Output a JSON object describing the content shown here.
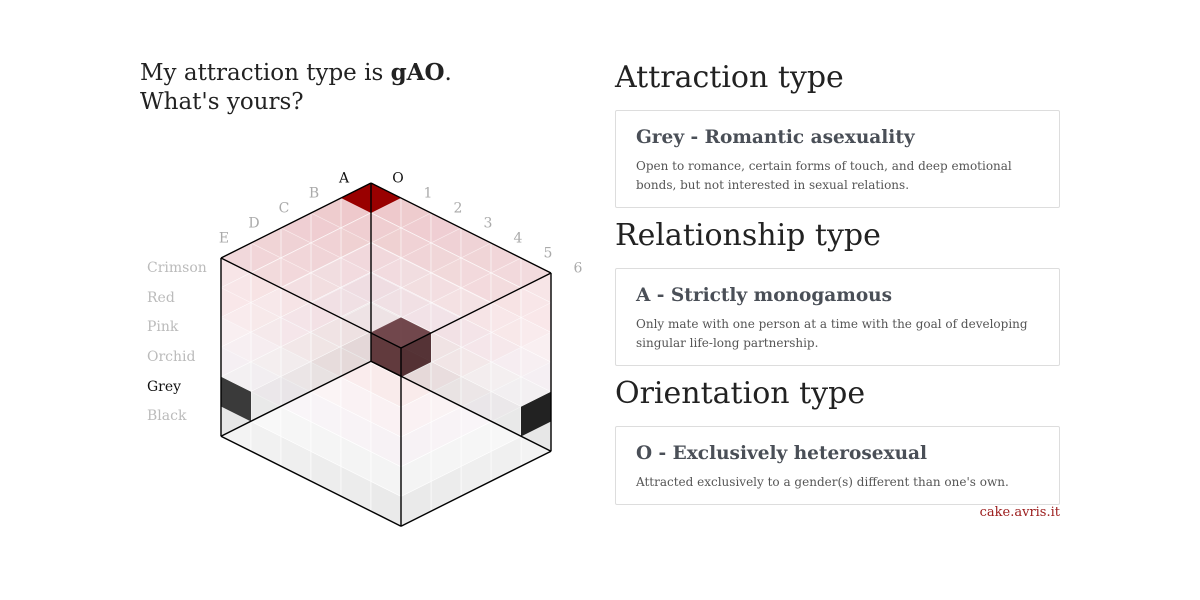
{
  "headline": {
    "prefix": "My attraction type is ",
    "code": "gAO",
    "suffix": ".",
    "line2": "What's yours?"
  },
  "cube": {
    "letters": [
      "A",
      "B",
      "C",
      "D",
      "E"
    ],
    "numbers": [
      "O",
      "1",
      "2",
      "3",
      "4",
      "5",
      "6"
    ],
    "colors": [
      "Crimson",
      "Red",
      "Pink",
      "Orchid",
      "Grey",
      "Black"
    ],
    "active_color": "Grey",
    "active_letter": "A",
    "active_number": "O",
    "accent": "#990000"
  },
  "sections": [
    {
      "heading": "Attraction type",
      "card_title": "Grey - Romantic asexuality",
      "card_desc": "Open to romance, certain forms of touch, and deep emotional bonds, but not interested in sexual relations."
    },
    {
      "heading": "Relationship type",
      "card_title": "A - Strictly monogamous",
      "card_desc": "Only mate with one person at a time with the goal of developing singular life-long partnership."
    },
    {
      "heading": "Orientation type",
      "card_title": "O - Exclusively heterosexual",
      "card_desc": "Attracted exclusively to a gender(s) different than one's own."
    }
  ],
  "footer": {
    "link": "cake.avris.it"
  }
}
